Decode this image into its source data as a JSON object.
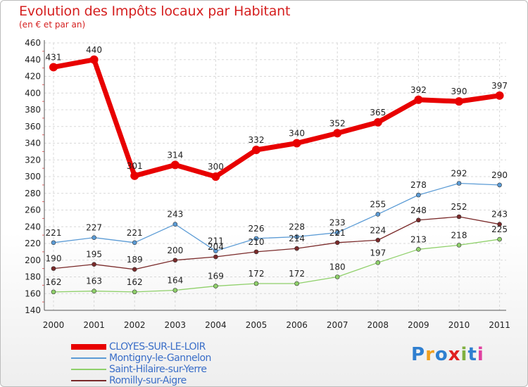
{
  "title": "Evolution des Impôts locaux par Habitant",
  "subtitle": "(en € et par an)",
  "logo": {
    "text": "Proxiti",
    "colors": [
      "#2f7fd0",
      "#f0a020",
      "#2f7fd0",
      "#e02020",
      "#80b040",
      "#2f7fd0",
      "#e040a0"
    ]
  },
  "chart_data": {
    "type": "line",
    "title": "Evolution des Impôts locaux par Habitant",
    "subtitle": "(en € et par an)",
    "xlabel": "",
    "ylabel": "",
    "x": [
      "2000",
      "2001",
      "2002",
      "2003",
      "2004",
      "2005",
      "2006",
      "2007",
      "2008",
      "2009",
      "2010",
      "2011"
    ],
    "ylim": [
      140,
      460
    ],
    "yticks": [
      140,
      160,
      180,
      200,
      220,
      240,
      260,
      280,
      300,
      320,
      340,
      360,
      380,
      400,
      420,
      440,
      460
    ],
    "grid": true,
    "legend": "bottom-left",
    "series": [
      {
        "name": "CLOYES-SUR-LE-LOIR",
        "color": "#e80000",
        "thick": true,
        "values": [
          431,
          440,
          301,
          314,
          300,
          332,
          340,
          352,
          365,
          392,
          390,
          397
        ]
      },
      {
        "name": "Montigny-le-Gannelon",
        "color": "#5b9bd5",
        "thick": false,
        "values": [
          221,
          227,
          221,
          243,
          211,
          226,
          228,
          233,
          255,
          278,
          292,
          290
        ]
      },
      {
        "name": "Saint-Hilaire-sur-Yerre",
        "color": "#8fd06a",
        "thick": false,
        "values": [
          162,
          163,
          162,
          164,
          169,
          172,
          172,
          180,
          197,
          213,
          218,
          225
        ]
      },
      {
        "name": "Romilly-sur-Aigre",
        "color": "#7a2a2a",
        "thick": false,
        "values": [
          190,
          195,
          189,
          200,
          204,
          210,
          214,
          221,
          224,
          248,
          252,
          243
        ]
      }
    ]
  }
}
